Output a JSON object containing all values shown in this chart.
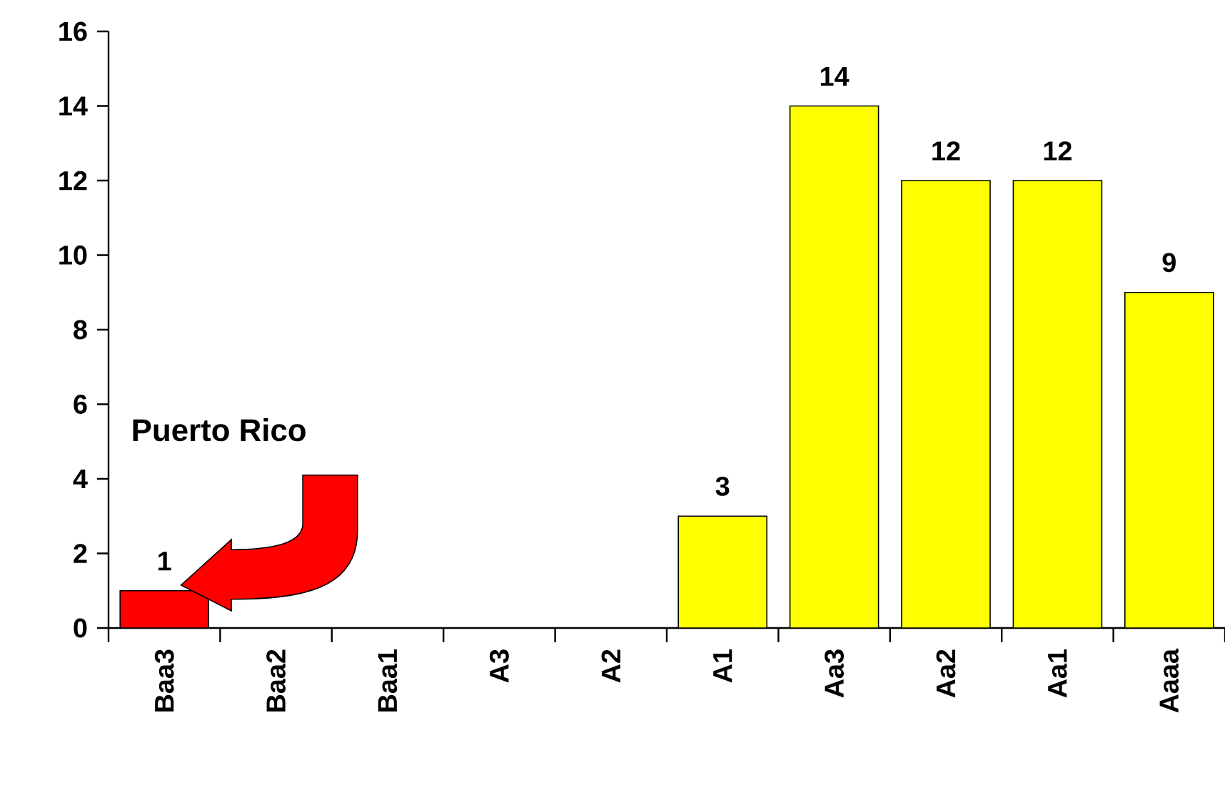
{
  "chart_data": {
    "type": "bar",
    "categories": [
      "Baa3",
      "Baa2",
      "Baa1",
      "A3",
      "A2",
      "A1",
      "Aa3",
      "Aa2",
      "Aa1",
      "Aaaa"
    ],
    "values": [
      1,
      0,
      0,
      0,
      0,
      3,
      14,
      12,
      12,
      9
    ],
    "colors": [
      "#ff0000",
      "#ffff00",
      "#ffff00",
      "#ffff00",
      "#ffff00",
      "#ffff00",
      "#ffff00",
      "#ffff00",
      "#ffff00",
      "#ffff00"
    ],
    "value_labels": [
      "1",
      null,
      null,
      null,
      null,
      "3",
      "14",
      "12",
      "12",
      "9"
    ],
    "ylim": [
      0,
      16
    ],
    "yticks": [
      0,
      2,
      4,
      6,
      8,
      10,
      12,
      14,
      16
    ],
    "annotations": [
      "Puerto Rico"
    ]
  }
}
